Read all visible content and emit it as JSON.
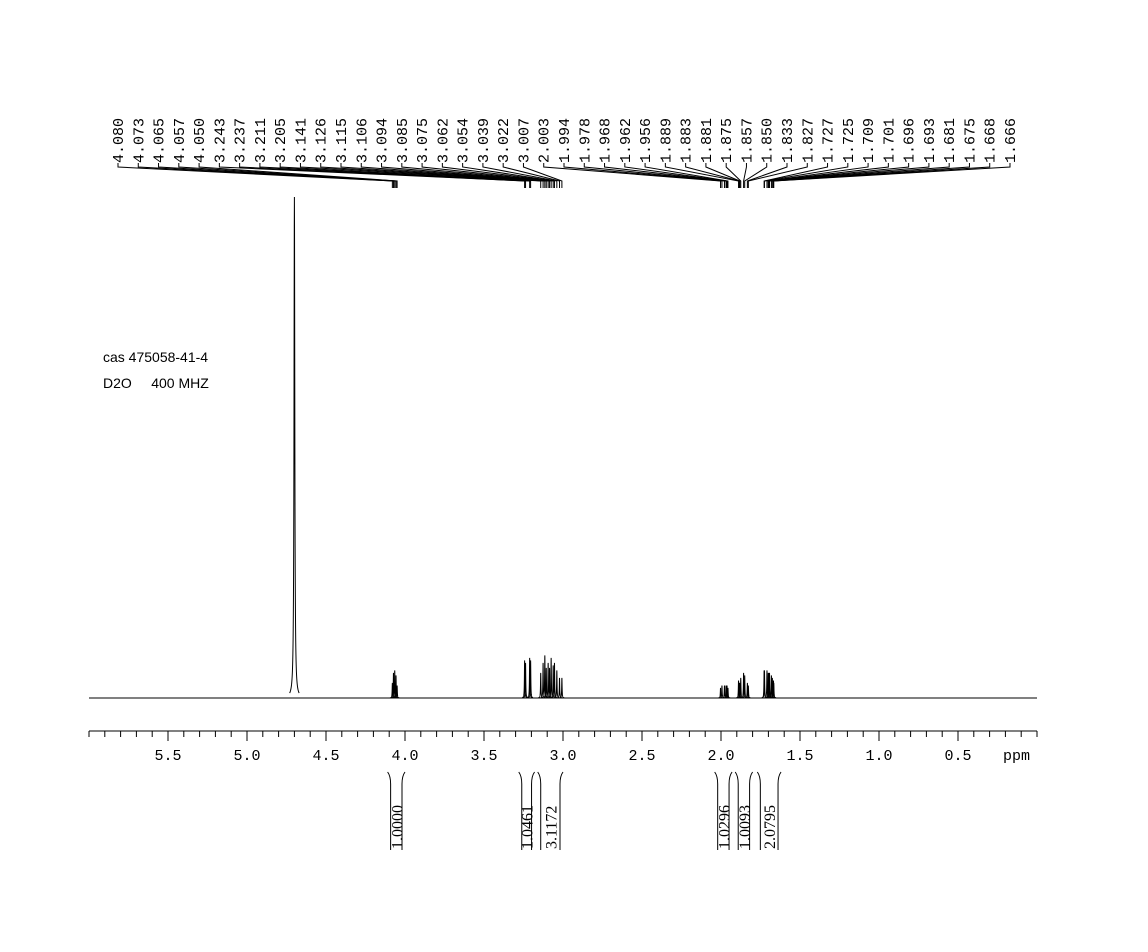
{
  "chart_data": {
    "type": "spectrum",
    "annotations": [
      "cas 475058-41-4",
      "D2O     400 MHZ"
    ],
    "x_label": "ppm",
    "xlim": [
      6.0,
      0
    ],
    "xticks": [
      {
        "value": 5.5,
        "label": "5.5"
      },
      {
        "value": 5,
        "label": "5.0"
      },
      {
        "value": 4.5,
        "label": "4.5"
      },
      {
        "value": 4,
        "label": "4.0"
      },
      {
        "value": 3.5,
        "label": "3.5"
      },
      {
        "value": 3,
        "label": "3.0"
      },
      {
        "value": 2.5,
        "label": "2.5"
      },
      {
        "value": 2,
        "label": "2.0"
      },
      {
        "value": 1.5,
        "label": "1.5"
      },
      {
        "value": 1,
        "label": "1.0"
      },
      {
        "value": 0.5,
        "label": "0.5"
      }
    ],
    "minor_tick_step": 0.1,
    "ylim": [
      0,
      100
    ],
    "color": "#000000",
    "solvent_peak": {
      "x": 4.7,
      "value": 100
    },
    "x": [
      4.08,
      4.073,
      4.065,
      4.057,
      4.05,
      3.243,
      3.237,
      3.211,
      3.205,
      3.141,
      3.126,
      3.115,
      3.106,
      3.094,
      3.085,
      3.075,
      3.062,
      3.054,
      3.039,
      3.022,
      3.007,
      2.003,
      1.994,
      1.978,
      1.968,
      1.962,
      1.956,
      1.889,
      1.883,
      1.881,
      1.875,
      1.857,
      1.85,
      1.833,
      1.827,
      1.727,
      1.725,
      1.709,
      1.701,
      1.696,
      1.693,
      1.681,
      1.675,
      1.668,
      1.666
    ],
    "x_labels": [
      "4.080",
      "4.073",
      "4.065",
      "4.057",
      "4.050",
      "3.243",
      "3.237",
      "3.211",
      "3.205",
      "3.141",
      "3.126",
      "3.115",
      "3.106",
      "3.094",
      "3.085",
      "3.075",
      "3.062",
      "3.054",
      "3.039",
      "3.022",
      "3.007",
      "2.003",
      "1.994",
      "1.978",
      "1.968",
      "1.962",
      "1.956",
      "1.889",
      "1.883",
      "1.881",
      "1.875",
      "1.857",
      "1.850",
      "1.833",
      "1.827",
      "1.727",
      "1.725",
      "1.709",
      "1.701",
      "1.696",
      "1.693",
      "1.681",
      "1.675",
      "1.668",
      "1.666"
    ],
    "values": [
      3,
      5,
      5.5,
      4.5,
      2.5,
      7.5,
      7,
      8,
      7.5,
      5,
      7,
      8.5,
      6,
      7,
      6,
      8,
      6.5,
      7,
      5.5,
      4,
      4,
      2,
      2.5,
      2.5,
      2.5,
      2.5,
      2,
      3.5,
      3,
      3,
      4,
      5,
      4.5,
      3,
      2.5,
      5.5,
      5.5,
      5.5,
      5,
      5,
      5,
      4.5,
      4,
      3.5,
      3
    ],
    "integrals": [
      1.0,
      1.0461,
      3.1172,
      1.0296,
      1.0093,
      2.0795
    ],
    "integral_labels": [
      "1.0000",
      "1.0461",
      "3.1172",
      "1.0296",
      "1.0093",
      "2.0795"
    ],
    "integral_ranges": [
      [
        4.11,
        4.0
      ],
      [
        3.28,
        3.18
      ],
      [
        3.16,
        3.0
      ],
      [
        2.04,
        1.93
      ],
      [
        1.91,
        1.8
      ],
      [
        1.77,
        1.62
      ]
    ]
  }
}
